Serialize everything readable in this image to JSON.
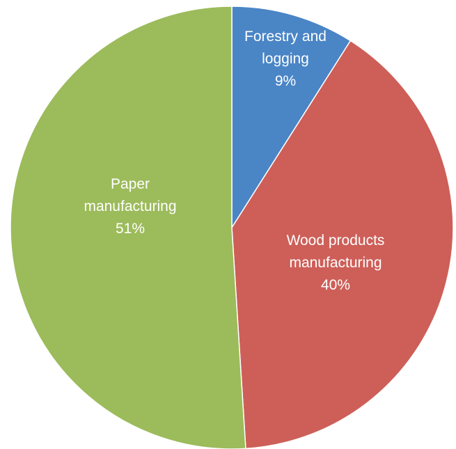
{
  "chart_data": {
    "type": "pie",
    "categories": [
      "Forestry and logging",
      "Wood products manufacturing",
      "Paper manufacturing"
    ],
    "values": [
      9,
      40,
      51
    ],
    "value_labels": [
      "9%",
      "40%",
      "51%"
    ],
    "colors": [
      "#4a85c6",
      "#cd5f58",
      "#9cbb5b"
    ]
  }
}
